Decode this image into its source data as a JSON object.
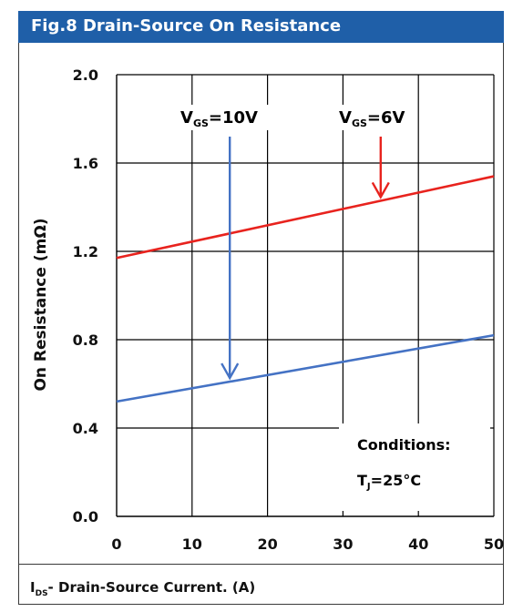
{
  "header": {
    "title": "Fig.8 Drain-Source On Resistance"
  },
  "footer": {
    "xlabel_prefix": "I",
    "xlabel_sub": "DS",
    "xlabel_rest": "- Drain-Source Current. (A)"
  },
  "conditions": {
    "title": "Conditions:",
    "line_main": "T",
    "line_sub": "J",
    "line_rest": "=25°C"
  },
  "colors": {
    "header_bg": "#1f5fa8",
    "red_series": "#e8231e",
    "blue_series": "#4472c4",
    "grid": "#000000"
  },
  "chart_data": {
    "type": "line",
    "title": "Fig.8 Drain-Source On Resistance",
    "xlabel": "IDS- Drain-Source Current. (A)",
    "ylabel": "On Resistance (mΩ)",
    "xlim": [
      0,
      50
    ],
    "ylim": [
      0.0,
      2.0
    ],
    "x_ticks": [
      "0",
      "10",
      "20",
      "30",
      "40",
      "50"
    ],
    "y_ticks": [
      "0.0",
      "0.4",
      "0.8",
      "1.2",
      "1.6",
      "2.0"
    ],
    "grid": true,
    "series": [
      {
        "name": "VGS=6V",
        "label_main": "V",
        "label_sub": "GS",
        "label_rest": "=6V",
        "color": "#e8231e",
        "x": [
          0,
          50
        ],
        "y": [
          1.17,
          1.54
        ],
        "arrow_at_x": 35
      },
      {
        "name": "VGS=10V",
        "label_main": "V",
        "label_sub": "GS",
        "label_rest": "=10V",
        "color": "#4472c4",
        "x": [
          0,
          50
        ],
        "y": [
          0.52,
          0.82
        ],
        "arrow_at_x": 15
      }
    ]
  }
}
